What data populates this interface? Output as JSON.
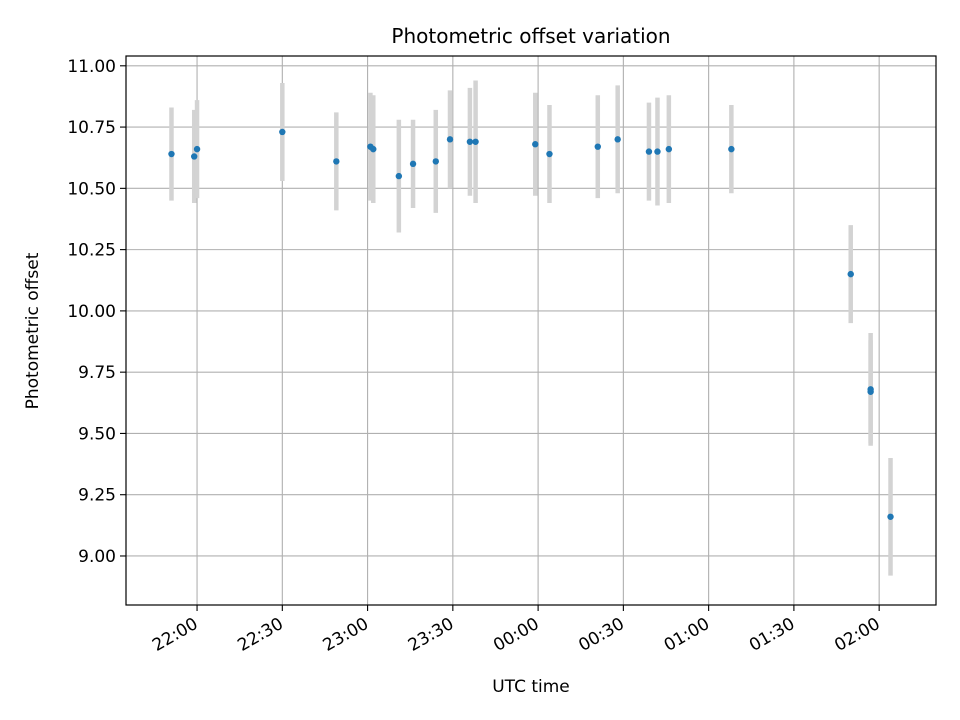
{
  "chart_data": {
    "type": "scatter",
    "title": "Photometric offset variation",
    "xlabel": "UTC time",
    "ylabel": "Photometric offset",
    "grid": true,
    "x_unit": "UTC time (HH:MM), 21:35 to 02:20 across midnight",
    "xlim": [
      "21:35",
      "02:20"
    ],
    "ylim": [
      8.8,
      11.04
    ],
    "xticks": [
      "22:00",
      "22:30",
      "23:00",
      "23:30",
      "00:00",
      "00:30",
      "01:00",
      "01:30",
      "02:00"
    ],
    "yticks": [
      "9.00",
      "9.25",
      "9.50",
      "9.75",
      "10.00",
      "10.25",
      "10.50",
      "10.75",
      "11.00"
    ],
    "marker_color": "#1f77b4",
    "errorbar_color": "#d3d3d3",
    "series": [
      {
        "points": [
          {
            "x": "21:51",
            "y": 10.64,
            "err": 0.19
          },
          {
            "x": "21:59",
            "y": 10.63,
            "err": 0.19
          },
          {
            "x": "22:00",
            "y": 10.66,
            "err": 0.2
          },
          {
            "x": "22:30",
            "y": 10.73,
            "err": 0.2
          },
          {
            "x": "22:49",
            "y": 10.61,
            "err": 0.2
          },
          {
            "x": "23:01",
            "y": 10.67,
            "err": 0.22
          },
          {
            "x": "23:02",
            "y": 10.66,
            "err": 0.22
          },
          {
            "x": "23:11",
            "y": 10.55,
            "err": 0.23
          },
          {
            "x": "23:16",
            "y": 10.6,
            "err": 0.18
          },
          {
            "x": "23:24",
            "y": 10.61,
            "err": 0.21
          },
          {
            "x": "23:29",
            "y": 10.7,
            "err": 0.2
          },
          {
            "x": "23:36",
            "y": 10.69,
            "err": 0.22
          },
          {
            "x": "23:38",
            "y": 10.69,
            "err": 0.25
          },
          {
            "x": "23:59",
            "y": 10.68,
            "err": 0.21
          },
          {
            "x": "00:04",
            "y": 10.64,
            "err": 0.2
          },
          {
            "x": "00:21",
            "y": 10.67,
            "err": 0.21
          },
          {
            "x": "00:28",
            "y": 10.7,
            "err": 0.22
          },
          {
            "x": "00:39",
            "y": 10.65,
            "err": 0.2
          },
          {
            "x": "00:42",
            "y": 10.65,
            "err": 0.22
          },
          {
            "x": "00:46",
            "y": 10.66,
            "err": 0.22
          },
          {
            "x": "01:08",
            "y": 10.66,
            "err": 0.18
          },
          {
            "x": "01:50",
            "y": 10.15,
            "err": 0.2
          },
          {
            "x": "01:57",
            "y": 9.68,
            "err": 0.23
          },
          {
            "x": "01:57",
            "y": 9.67,
            "err": 0.21
          },
          {
            "x": "02:04",
            "y": 9.16,
            "err": 0.24
          }
        ]
      }
    ]
  }
}
